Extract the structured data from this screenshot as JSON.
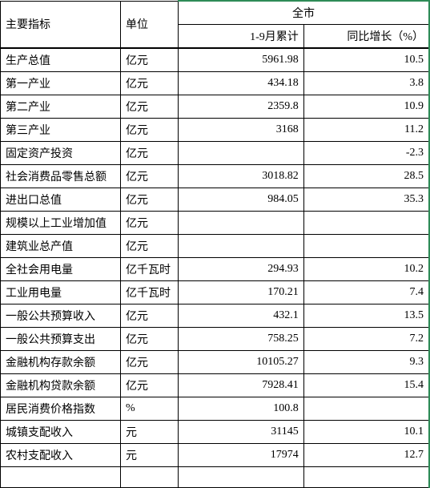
{
  "columns": {
    "indicator": "主要指标",
    "unit": "单位",
    "city_group": "全市",
    "cumulative": "1-9月累计",
    "growth": "同比增长（%）"
  },
  "rows": [
    {
      "indicator": "生产总值",
      "unit": "亿元",
      "value": "5961.98",
      "growth": "10.5"
    },
    {
      "indicator": "第一产业",
      "unit": "亿元",
      "value": "434.18",
      "growth": "3.8"
    },
    {
      "indicator": "第二产业",
      "unit": "亿元",
      "value": "2359.8",
      "growth": "10.9"
    },
    {
      "indicator": "第三产业",
      "unit": "亿元",
      "value": "3168",
      "growth": "11.2"
    },
    {
      "indicator": "固定资产投资",
      "unit": "亿元",
      "value": "",
      "growth": "-2.3"
    },
    {
      "indicator": "社会消费品零售总额",
      "unit": "亿元",
      "value": "3018.82",
      "growth": "28.5"
    },
    {
      "indicator": "进出口总值",
      "unit": "亿元",
      "value": "984.05",
      "growth": "35.3"
    },
    {
      "indicator": "规模以上工业增加值",
      "unit": "亿元",
      "value": "",
      "growth": ""
    },
    {
      "indicator": "建筑业总产值",
      "unit": "亿元",
      "value": "",
      "growth": ""
    },
    {
      "indicator": "全社会用电量",
      "unit": "亿千瓦时",
      "value": "294.93",
      "growth": "10.2"
    },
    {
      "indicator": "工业用电量",
      "unit": "亿千瓦时",
      "value": "170.21",
      "growth": "7.4"
    },
    {
      "indicator": "一般公共预算收入",
      "unit": "亿元",
      "value": "432.1",
      "growth": "13.5"
    },
    {
      "indicator": "一般公共预算支出",
      "unit": "亿元",
      "value": "758.25",
      "growth": "7.2"
    },
    {
      "indicator": "金融机构存款余额",
      "unit": "亿元",
      "value": "10105.27",
      "growth": "9.3"
    },
    {
      "indicator": "金融机构贷款余额",
      "unit": "亿元",
      "value": "7928.41",
      "growth": "15.4"
    },
    {
      "indicator": "居民消费价格指数",
      "unit": "%",
      "value": "100.8",
      "growth": ""
    },
    {
      "indicator": "城镇支配收入",
      "unit": "元",
      "value": "31145",
      "growth": "10.1"
    },
    {
      "indicator": "农村支配收入",
      "unit": "元",
      "value": "17974",
      "growth": "12.7"
    },
    {
      "indicator": "",
      "unit": "",
      "value": "",
      "growth": ""
    }
  ],
  "style": {
    "accent_border": "#2e8b57",
    "border_color": "#000000",
    "background": "#ffffff",
    "font_size_pt": 11,
    "font_family": "SimSun"
  }
}
